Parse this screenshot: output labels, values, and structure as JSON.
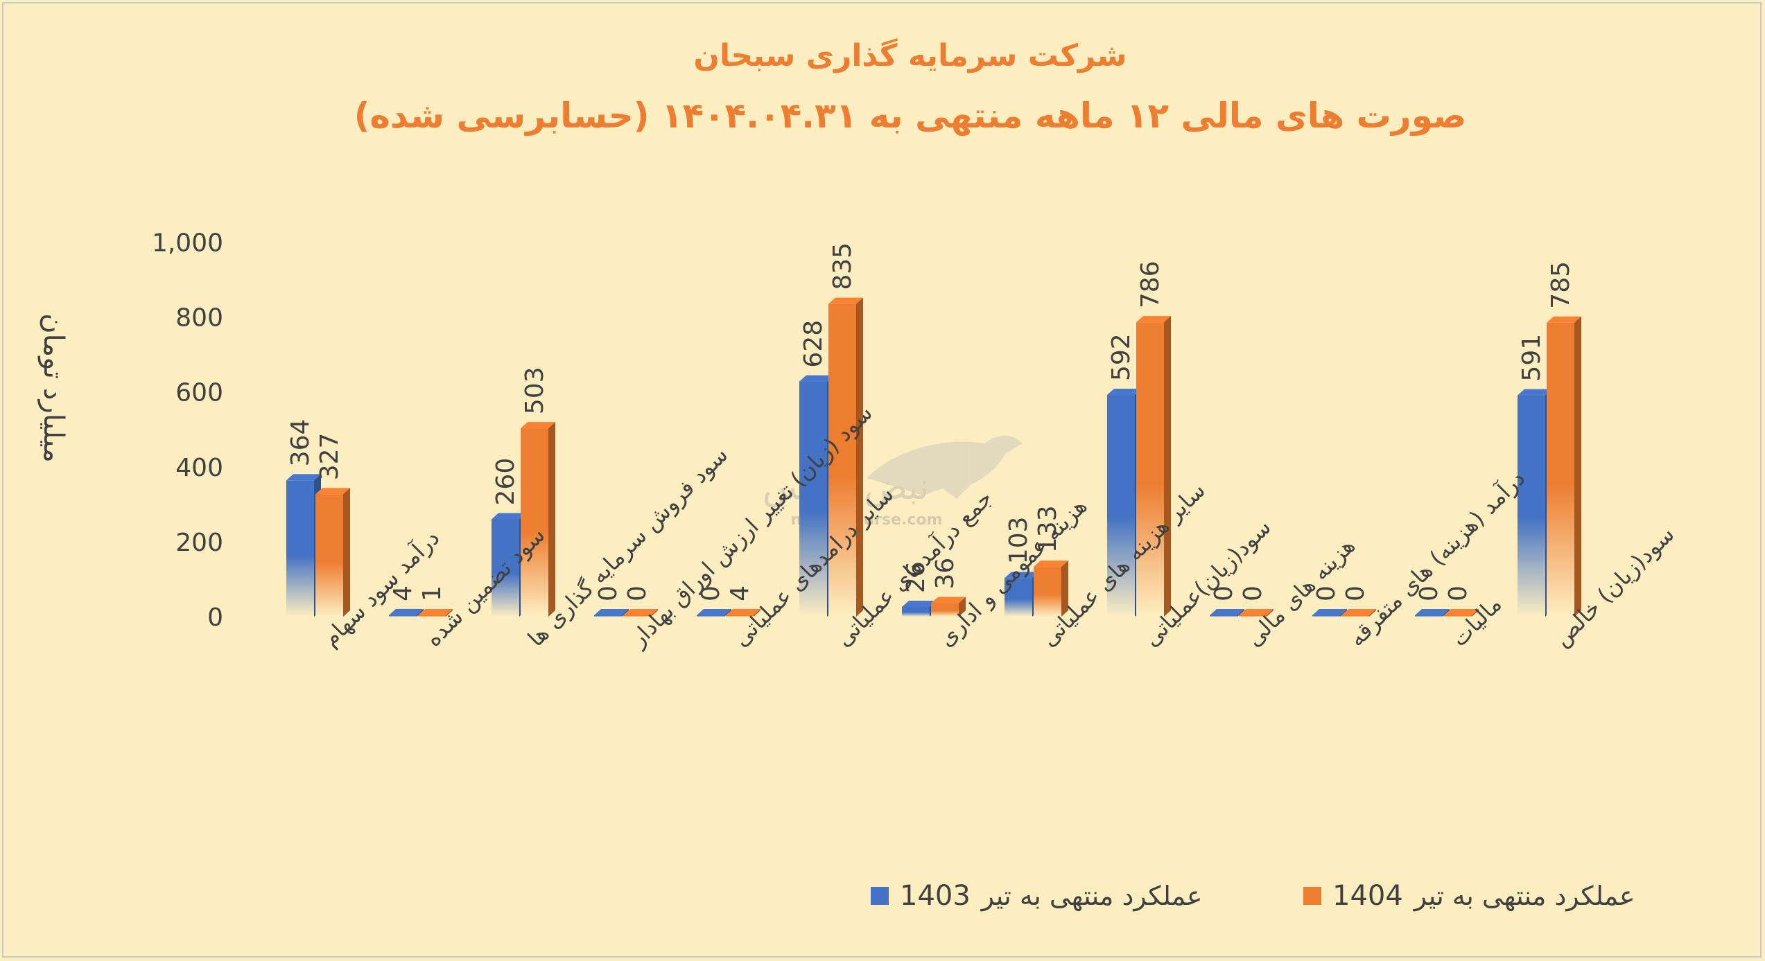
{
  "chart_data": {
    "type": "bar",
    "title": "شرکت سرمایه گذاری سبحان",
    "subtitle": "صورت های مالی ۱۲ ماهه منتهی به ۱۴۰۴.۰۴.۳۱ (حسابرسی شده)",
    "ylabel": "میلیارد تومان",
    "xlabel": "",
    "ylim": [
      0,
      1000
    ],
    "yticks": [
      "0",
      "200",
      "400",
      "600",
      "800",
      "1,000"
    ],
    "grid": false,
    "legend_position": "bottom-right",
    "categories": [
      "درآمد سود سهام",
      "سود تضمین شده",
      "سود فروش سرمایه گذاری ها",
      "سود (زیان) تغییر ارزش اوراق بهادار",
      "سایر درامدهای عملیاتی",
      "جمع درآمدهای عملیاتی",
      "هزینه عمومی و اداری",
      "سایر هزینه های عملیاتی",
      "سود(زیان)عملیاتی",
      "هزینه های مالی",
      "درآمد (هزینه) های متفرقه",
      "مالیات",
      "سود(زیان) خالص"
    ],
    "series": [
      {
        "name": "عملکرد منتهی به تیر 1403",
        "color": "#4472c4",
        "values": [
          364,
          4,
          260,
          0,
          0,
          628,
          26,
          103,
          592,
          0,
          0,
          0,
          591
        ],
        "labels": [
          "364",
          "4",
          "260",
          "0",
          "0",
          "628",
          "26",
          "103",
          "592",
          "0",
          "0",
          "0",
          "591"
        ]
      },
      {
        "name": "عملکرد منتهی به تیر 1404",
        "color": "#ed7d31",
        "values": [
          327,
          1,
          503,
          0,
          4,
          835,
          36,
          133,
          786,
          0,
          0,
          0,
          785
        ],
        "labels": [
          "327",
          "1",
          "503",
          "0",
          "4",
          "835",
          "36",
          "133",
          "786",
          "0",
          "0",
          "0",
          "785"
        ]
      }
    ]
  },
  "legend": {
    "item1_text": "عملکرد منتهی به تیر",
    "item1_year": "1403",
    "item2_text": "عملکرد منتهی به تیر",
    "item2_year": "1404"
  },
  "watermark": {
    "brand": "نبض بورس",
    "url": "nabzebourse.com"
  }
}
